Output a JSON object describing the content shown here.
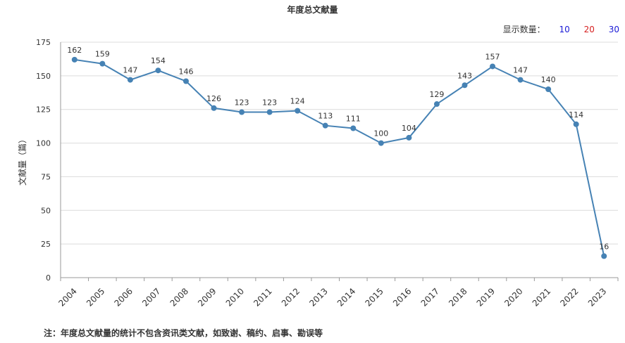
{
  "title": "年度总文献量",
  "count_selector": {
    "label": "显示数量：",
    "options": [
      {
        "label": "10",
        "color": "#1a1ad6"
      },
      {
        "label": "20",
        "color": "#d62020"
      },
      {
        "label": "30",
        "color": "#1a1ad6"
      }
    ]
  },
  "note": "注：年度总文献量的统计不包含资讯类文献，如致谢、稿约、启事、勘误等",
  "chart_data": {
    "type": "line",
    "ylabel": "文献量（篇）",
    "xlabel": "",
    "ylim": [
      0,
      175
    ],
    "yticks": [
      0,
      25,
      50,
      75,
      100,
      125,
      150,
      175
    ],
    "grid": true,
    "line_color": "#4682b4",
    "categories": [
      "2004",
      "2005",
      "2006",
      "2007",
      "2008",
      "2009",
      "2010",
      "2011",
      "2012",
      "2013",
      "2014",
      "2015",
      "2016",
      "2017",
      "2018",
      "2019",
      "2020",
      "2021",
      "2022",
      "2023"
    ],
    "values": [
      162,
      159,
      147,
      154,
      146,
      126,
      123,
      123,
      124,
      113,
      111,
      100,
      104,
      129,
      143,
      157,
      147,
      140,
      114,
      16
    ]
  }
}
